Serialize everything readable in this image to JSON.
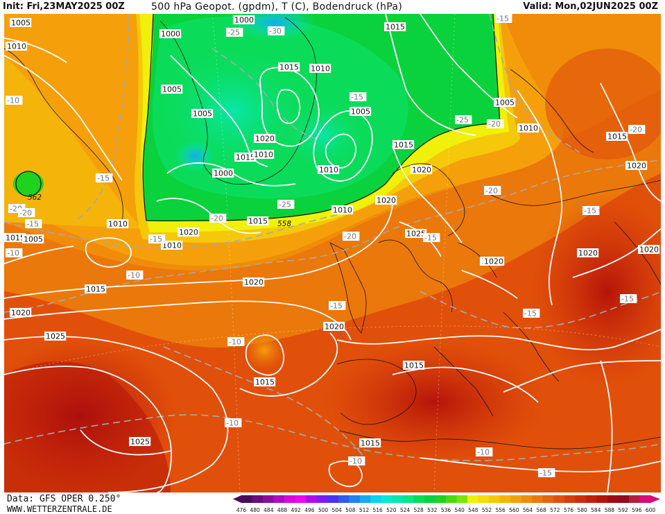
{
  "header": {
    "init_label": "Init: Fri,23MAY2025 00Z",
    "title": "500 hPa Geopot. (gpdm), T (C), Bodendruck (hPa)",
    "valid_label": "Valid: Mon,02JUN2025 00Z"
  },
  "footer": {
    "data_source": "Data: GFS OPER 0.250°",
    "website": "WWW.WETTERZENTRALE.DE"
  },
  "colors": {
    "land_border": "#111111",
    "isobar": "#ffffff",
    "temperature_isotherm": "#a8a8a8",
    "palette": [
      "#4a0a5c",
      "#6a0a7c",
      "#8c0aa0",
      "#b00ac4",
      "#d40ae0",
      "#e80af0",
      "#b40af0",
      "#7a1ef0",
      "#4a32f0",
      "#2e5af0",
      "#1e82f0",
      "#14aaf0",
      "#0ad2f0",
      "#0ae6d2",
      "#0ae6aa",
      "#0ae682",
      "#0adc5a",
      "#0ad23c",
      "#1ed21e",
      "#46dc0a",
      "#78e60a",
      "#f0f00a",
      "#f5dc0a",
      "#f5c80a",
      "#f5b40a",
      "#f5a00a",
      "#f08c0a",
      "#eb780a",
      "#e6640a",
      "#e1500a",
      "#d73c0a",
      "#cd2d0a",
      "#c31e0a",
      "#b4140a",
      "#a50a14",
      "#960a1e",
      "#b41e3c",
      "#dc0a78"
    ]
  },
  "legend": {
    "levels": [
      "476",
      "480",
      "484",
      "488",
      "492",
      "496",
      "500",
      "504",
      "508",
      "512",
      "516",
      "520",
      "524",
      "528",
      "532",
      "536",
      "540",
      "548",
      "552",
      "556",
      "560",
      "564",
      "568",
      "572",
      "576",
      "580",
      "584",
      "588",
      "592",
      "596",
      "600"
    ]
  },
  "geopotential_labels": [
    {
      "id": "gp-562",
      "text": "562"
    },
    {
      "id": "gp-558",
      "text": "558"
    }
  ],
  "pressure_labels": [
    {
      "id": "p01",
      "text": "1005"
    },
    {
      "id": "p02",
      "text": "1010"
    },
    {
      "id": "p03",
      "text": "1000"
    },
    {
      "id": "p04",
      "text": "1000"
    },
    {
      "id": "p05",
      "text": "1005"
    },
    {
      "id": "p06",
      "text": "1015"
    },
    {
      "id": "p07",
      "text": "1010"
    },
    {
      "id": "p08",
      "text": "1015"
    },
    {
      "id": "p09",
      "text": "1005"
    },
    {
      "id": "p10",
      "text": "1020"
    },
    {
      "id": "p11",
      "text": "1015"
    },
    {
      "id": "p12",
      "text": "1010"
    },
    {
      "id": "p13",
      "text": "1000"
    },
    {
      "id": "p14",
      "text": "1010"
    },
    {
      "id": "p15",
      "text": "1005"
    },
    {
      "id": "p16",
      "text": "1015"
    },
    {
      "id": "p17",
      "text": "1010"
    },
    {
      "id": "p18",
      "text": "1005"
    },
    {
      "id": "p19",
      "text": "1010"
    },
    {
      "id": "p20",
      "text": "1015"
    },
    {
      "id": "p21",
      "text": "1010"
    },
    {
      "id": "p22",
      "text": "1020"
    },
    {
      "id": "p23",
      "text": "1020"
    },
    {
      "id": "p24",
      "text": "1020"
    },
    {
      "id": "p25",
      "text": "1015"
    },
    {
      "id": "p26",
      "text": "1010"
    },
    {
      "id": "p27",
      "text": "1005"
    },
    {
      "id": "p28",
      "text": "1015"
    },
    {
      "id": "p29",
      "text": "1020"
    },
    {
      "id": "p30",
      "text": "1025"
    },
    {
      "id": "p31",
      "text": "1015"
    },
    {
      "id": "p32",
      "text": "1015"
    },
    {
      "id": "p33",
      "text": "1020"
    },
    {
      "id": "p34",
      "text": "1020"
    },
    {
      "id": "p35",
      "text": "1020"
    },
    {
      "id": "p36",
      "text": "1025"
    },
    {
      "id": "p37",
      "text": "1015"
    },
    {
      "id": "p38",
      "text": "1020"
    },
    {
      "id": "p39",
      "text": "1020"
    },
    {
      "id": "p40",
      "text": "1020"
    },
    {
      "id": "p41",
      "text": "1025"
    },
    {
      "id": "p42",
      "text": "1015"
    },
    {
      "id": "p43",
      "text": "1015"
    }
  ],
  "temperature_labels": [
    {
      "id": "t01",
      "text": "-25"
    },
    {
      "id": "t02",
      "text": "-30"
    },
    {
      "id": "t03",
      "text": "-15"
    },
    {
      "id": "t04",
      "text": "-10"
    },
    {
      "id": "t05",
      "text": "-15"
    },
    {
      "id": "t06",
      "text": "-20"
    },
    {
      "id": "t07",
      "text": "-20"
    },
    {
      "id": "t08",
      "text": "-15"
    },
    {
      "id": "t09",
      "text": "-10"
    },
    {
      "id": "t10",
      "text": "-25"
    },
    {
      "id": "t11",
      "text": "-20"
    },
    {
      "id": "t12",
      "text": "-25"
    },
    {
      "id": "t13",
      "text": "-20"
    },
    {
      "id": "t14",
      "text": "-15"
    },
    {
      "id": "t15",
      "text": "-10"
    },
    {
      "id": "t16",
      "text": "-20"
    },
    {
      "id": "t17",
      "text": "-15"
    },
    {
      "id": "t18",
      "text": "-20"
    },
    {
      "id": "t19",
      "text": "-15"
    },
    {
      "id": "t20",
      "text": "-15"
    },
    {
      "id": "t21",
      "text": "-15"
    },
    {
      "id": "t22",
      "text": "-15"
    },
    {
      "id": "t23",
      "text": "-10"
    },
    {
      "id": "t24",
      "text": "-10"
    },
    {
      "id": "t25",
      "text": "-10"
    },
    {
      "id": "t26",
      "text": "-10"
    },
    {
      "id": "t27",
      "text": "-15"
    },
    {
      "id": "t28",
      "text": "-15"
    },
    {
      "id": "t29",
      "text": "-20"
    }
  ]
}
